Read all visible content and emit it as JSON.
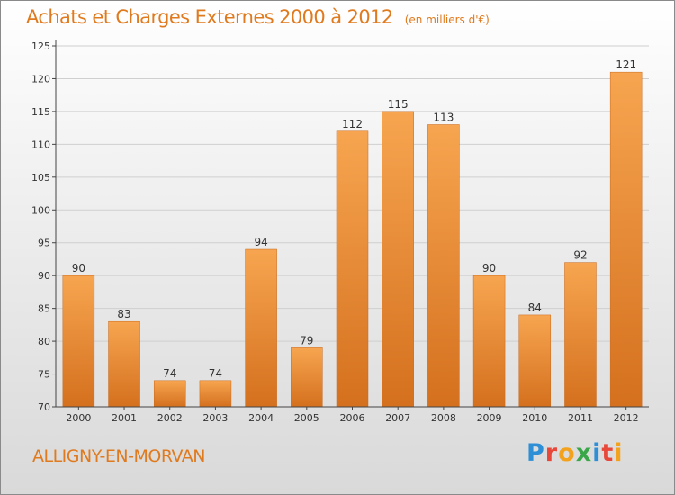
{
  "header": {
    "title": "Achats et Charges Externes 2000 à 2012",
    "subtitle": "(en milliers d'€)"
  },
  "footer": {
    "commune": "ALLIGNY-EN-MORVAN",
    "logo_text": "Proxiti",
    "logo_colors": [
      "#2e8fd6",
      "#e8483a",
      "#f2a21d",
      "#3aa64a",
      "#2e8fd6",
      "#e8483a",
      "#f2a21d"
    ]
  },
  "colors": {
    "bar_top": "#f7a550",
    "bar_bottom": "#d4701e",
    "text": "#e07a1e",
    "axis": "#444444"
  },
  "chart_data": {
    "type": "bar",
    "categories": [
      "2000",
      "2001",
      "2002",
      "2003",
      "2004",
      "2005",
      "2006",
      "2007",
      "2008",
      "2009",
      "2010",
      "2011",
      "2012"
    ],
    "values": [
      90,
      83,
      74,
      74,
      94,
      79,
      112,
      115,
      113,
      90,
      84,
      92,
      121
    ],
    "ylim": [
      70,
      125
    ],
    "yticks": [
      70,
      75,
      80,
      85,
      90,
      95,
      100,
      105,
      110,
      115,
      120,
      125
    ],
    "grid": true
  }
}
